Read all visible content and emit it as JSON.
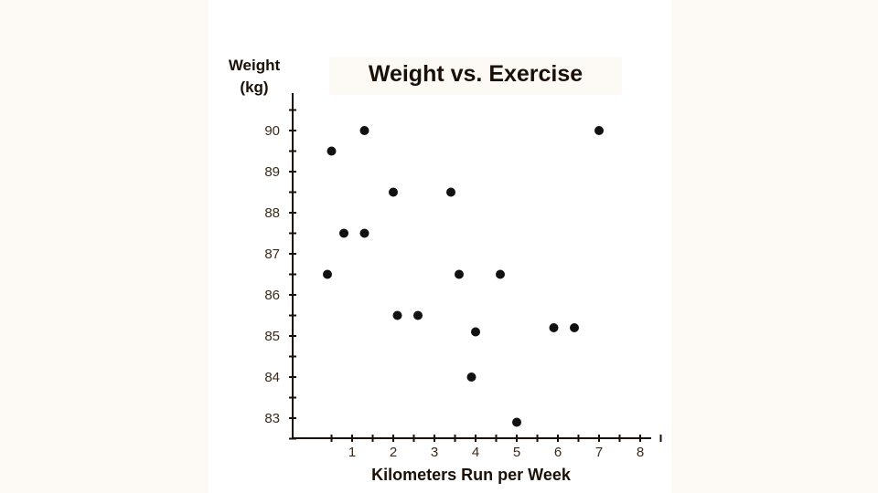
{
  "chart_data": {
    "type": "scatter",
    "title": "Weight vs. Exercise",
    "ylabel_line1": "Weight",
    "ylabel_line2": "(kg)",
    "xlabel": "Kilometers Run per Week",
    "xlim": [
      0,
      8.7
    ],
    "ylim": [
      82.5,
      90.8
    ],
    "x_ticks": [
      1,
      2,
      3,
      4,
      5,
      6,
      7,
      8
    ],
    "y_ticks": [
      83,
      84,
      85,
      86,
      87,
      88,
      89,
      90
    ],
    "grid": false,
    "point_color": "#111111",
    "points": [
      {
        "x": 0.5,
        "y": 89.5
      },
      {
        "x": 1.3,
        "y": 90.0
      },
      {
        "x": 0.8,
        "y": 87.5
      },
      {
        "x": 1.3,
        "y": 87.5
      },
      {
        "x": 0.4,
        "y": 86.5
      },
      {
        "x": 2.0,
        "y": 88.5
      },
      {
        "x": 3.4,
        "y": 88.5
      },
      {
        "x": 3.6,
        "y": 86.5
      },
      {
        "x": 4.6,
        "y": 86.5
      },
      {
        "x": 2.1,
        "y": 85.5
      },
      {
        "x": 2.6,
        "y": 85.5
      },
      {
        "x": 4.0,
        "y": 85.1
      },
      {
        "x": 3.9,
        "y": 84.0
      },
      {
        "x": 5.0,
        "y": 82.9
      },
      {
        "x": 5.9,
        "y": 85.2
      },
      {
        "x": 6.4,
        "y": 85.2
      },
      {
        "x": 7.0,
        "y": 90.0
      }
    ]
  }
}
